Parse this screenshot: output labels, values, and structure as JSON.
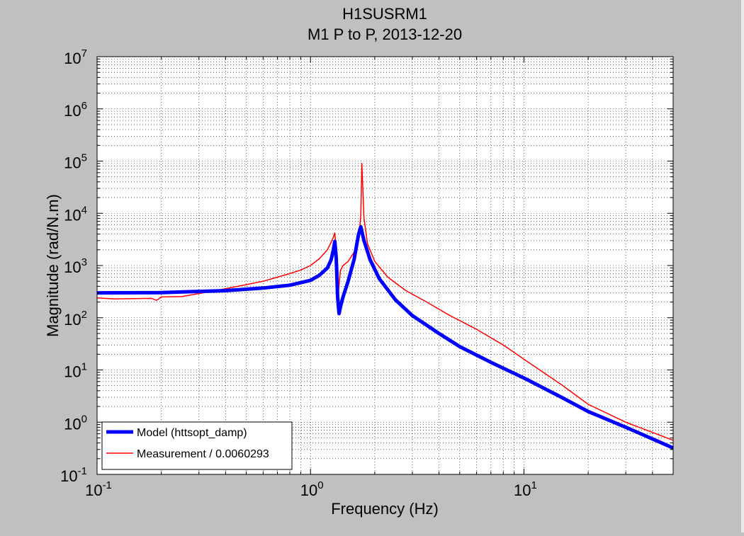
{
  "chart_data": {
    "type": "line",
    "title": "H1SUSRM1",
    "subtitle": "M1 P to P, 2013-12-20",
    "xlabel": "Frequency (Hz)",
    "ylabel": "Magnitude (rad/N.m)",
    "xscale": "log",
    "yscale": "log",
    "xlim": [
      0.1,
      50
    ],
    "ylim": [
      0.1,
      10000000
    ],
    "grid": true,
    "minor_grid": true,
    "legend_position": "bottom-left",
    "x_ticks": [
      {
        "value": 0.1,
        "base": "10",
        "exp": "-1"
      },
      {
        "value": 1,
        "base": "10",
        "exp": "0"
      },
      {
        "value": 10,
        "base": "10",
        "exp": "1"
      }
    ],
    "y_ticks": [
      {
        "value": 0.1,
        "base": "10",
        "exp": "-1"
      },
      {
        "value": 1,
        "base": "10",
        "exp": "0"
      },
      {
        "value": 10,
        "base": "10",
        "exp": "1"
      },
      {
        "value": 100,
        "base": "10",
        "exp": "2"
      },
      {
        "value": 1000,
        "base": "10",
        "exp": "3"
      },
      {
        "value": 10000,
        "base": "10",
        "exp": "4"
      },
      {
        "value": 100000,
        "base": "10",
        "exp": "5"
      },
      {
        "value": 1000000,
        "base": "10",
        "exp": "6"
      },
      {
        "value": 10000000,
        "base": "10",
        "exp": "7"
      }
    ],
    "series": [
      {
        "name": "Model (httsopt_damp)",
        "color": "#0000ff",
        "x": [
          0.1,
          0.2,
          0.4,
          0.6,
          0.8,
          1.0,
          1.1,
          1.2,
          1.25,
          1.28,
          1.3,
          1.32,
          1.34,
          1.36,
          1.38,
          1.42,
          1.5,
          1.6,
          1.68,
          1.72,
          1.78,
          1.9,
          2.1,
          2.5,
          3,
          4,
          5,
          7,
          10,
          15,
          20,
          30,
          50
        ],
        "y": [
          300,
          303,
          330,
          370,
          420,
          520,
          650,
          900,
          1300,
          2000,
          2900,
          1400,
          250,
          120,
          160,
          250,
          500,
          1300,
          4000,
          5500,
          3000,
          1300,
          560,
          220,
          110,
          50,
          28,
          14,
          7,
          3,
          1.6,
          0.8,
          0.32
        ]
      },
      {
        "name": "Measurement / 0.0060293",
        "color": "#ff0000",
        "x": [
          0.1,
          0.12,
          0.15,
          0.18,
          0.19,
          0.2,
          0.25,
          0.3,
          0.4,
          0.5,
          0.6,
          0.7,
          0.8,
          0.9,
          1.0,
          1.1,
          1.2,
          1.25,
          1.28,
          1.3,
          1.32,
          1.35,
          1.38,
          1.42,
          1.5,
          1.6,
          1.68,
          1.72,
          1.74,
          1.78,
          1.85,
          2.0,
          2.3,
          2.8,
          3.5,
          4.5,
          6,
          8,
          10,
          15,
          20,
          30,
          50
        ],
        "y": [
          240,
          230,
          232,
          235,
          215,
          250,
          255,
          290,
          360,
          430,
          500,
          600,
          700,
          820,
          1000,
          1350,
          2000,
          2800,
          3500,
          4200,
          2000,
          300,
          800,
          1000,
          1200,
          1800,
          3200,
          9000,
          90000,
          8000,
          2600,
          1200,
          600,
          330,
          200,
          110,
          60,
          30,
          16,
          5.2,
          2.2,
          1.0,
          0.45
        ]
      }
    ]
  }
}
